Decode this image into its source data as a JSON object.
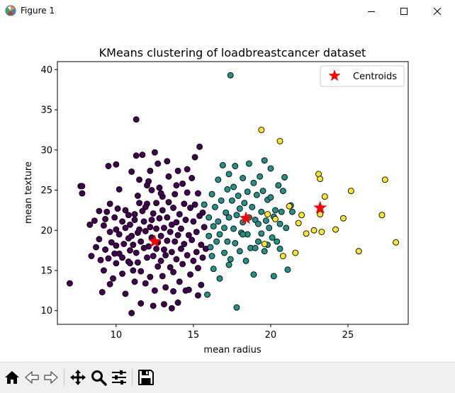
{
  "window": {
    "title": "Figure 1",
    "controls": [
      "minimize",
      "maximize",
      "close"
    ]
  },
  "toolbar": {
    "buttons": [
      "home-icon",
      "back-icon",
      "forward-icon",
      "pan-icon",
      "zoom-icon",
      "configure-subplots-icon",
      "save-icon"
    ]
  },
  "colors": {
    "cluster0": "#440154",
    "cluster1": "#21918c",
    "cluster2": "#fde725",
    "centroid": "#ff0000"
  },
  "chart_data": {
    "type": "scatter",
    "title": "KMeans clustering of loadbreastcancer dataset",
    "xlabel": "mean radius",
    "ylabel": "mean texture",
    "xlim": [
      6.2,
      28.9
    ],
    "ylim": [
      8.3,
      41.0
    ],
    "xticks": [
      10,
      15,
      20,
      25
    ],
    "yticks": [
      10,
      15,
      20,
      25,
      30,
      35,
      40
    ],
    "grid": false,
    "legend": {
      "position": "top-right",
      "entries": [
        "Centroids"
      ]
    },
    "centroids": [
      [
        12.5,
        18.6
      ],
      [
        18.4,
        21.5
      ],
      [
        23.2,
        22.8
      ]
    ],
    "clusters": [
      {
        "color": "#440154",
        "points": [
          [
            7.0,
            13.4
          ],
          [
            7.7,
            25.5
          ],
          [
            7.8,
            24.6
          ],
          [
            7.8,
            25.5
          ],
          [
            8.3,
            20.7
          ],
          [
            8.4,
            16.8
          ],
          [
            8.6,
            21.2
          ],
          [
            8.7,
            17.9
          ],
          [
            8.9,
            22.4
          ],
          [
            8.9,
            18.9
          ],
          [
            9.0,
            16.3
          ],
          [
            9.1,
            12.3
          ],
          [
            9.2,
            15.0
          ],
          [
            9.2,
            20.6
          ],
          [
            9.3,
            21.4
          ],
          [
            9.3,
            17.6
          ],
          [
            9.4,
            22.3
          ],
          [
            9.5,
            28.0
          ],
          [
            9.5,
            16.5
          ],
          [
            9.6,
            13.3
          ],
          [
            9.6,
            19.8
          ],
          [
            9.7,
            18.5
          ],
          [
            9.8,
            14.0
          ],
          [
            9.9,
            17.1
          ],
          [
            9.9,
            21.6
          ],
          [
            10.0,
            20.1
          ],
          [
            10.0,
            28.2
          ],
          [
            10.0,
            18.1
          ],
          [
            10.0,
            15.9
          ],
          [
            10.1,
            22.7
          ],
          [
            10.2,
            19.5
          ],
          [
            10.2,
            17.1
          ],
          [
            10.4,
            16.6
          ],
          [
            10.4,
            21.1
          ],
          [
            10.5,
            18.3
          ],
          [
            10.6,
            20.3
          ],
          [
            10.6,
            22.5
          ],
          [
            10.8,
            19.0
          ],
          [
            10.8,
            16.1
          ],
          [
            10.9,
            17.5
          ],
          [
            10.9,
            20.7
          ],
          [
            11.0,
            27.3
          ],
          [
            11.0,
            19.3
          ],
          [
            11.1,
            15.0
          ],
          [
            11.1,
            18.2
          ],
          [
            11.2,
            21.3
          ],
          [
            11.2,
            22.0
          ],
          [
            11.3,
            29.3
          ],
          [
            11.3,
            33.8
          ],
          [
            11.3,
            17.2
          ],
          [
            11.4,
            19.7
          ],
          [
            11.4,
            16.0
          ],
          [
            11.5,
            23.4
          ],
          [
            11.5,
            20.1
          ],
          [
            11.6,
            18.6
          ],
          [
            11.6,
            14.9
          ],
          [
            11.6,
            10.9
          ],
          [
            11.7,
            29.4
          ],
          [
            11.7,
            22.4
          ],
          [
            11.8,
            21.1
          ],
          [
            11.8,
            17.8
          ],
          [
            11.9,
            13.4
          ],
          [
            11.9,
            19.9
          ],
          [
            12.0,
            25.6
          ],
          [
            12.0,
            16.6
          ],
          [
            12.0,
            23.3
          ],
          [
            12.1,
            18.0
          ],
          [
            12.1,
            26.1
          ],
          [
            12.2,
            20.4
          ],
          [
            12.2,
            14.2
          ],
          [
            12.2,
            27.4
          ],
          [
            12.3,
            19.1
          ],
          [
            12.3,
            21.3
          ],
          [
            12.4,
            22.1
          ],
          [
            12.4,
            16.8
          ],
          [
            12.5,
            12.5
          ],
          [
            12.5,
            29.7
          ],
          [
            12.6,
            17.7
          ],
          [
            12.6,
            20.2
          ],
          [
            12.6,
            23.4
          ],
          [
            12.7,
            15.5
          ],
          [
            12.7,
            18.5
          ],
          [
            12.8,
            21.5
          ],
          [
            12.8,
            25.3
          ],
          [
            12.9,
            16.2
          ],
          [
            12.9,
            19.3
          ],
          [
            13.0,
            22.5
          ],
          [
            13.0,
            14.3
          ],
          [
            13.0,
            24.2
          ],
          [
            13.1,
            17.6
          ],
          [
            13.1,
            20.3
          ],
          [
            13.2,
            12.9
          ],
          [
            13.2,
            16.9
          ],
          [
            13.3,
            21.6
          ],
          [
            13.3,
            18.7
          ],
          [
            13.4,
            26.7
          ],
          [
            13.4,
            23.5
          ],
          [
            13.5,
            15.4
          ],
          [
            13.5,
            19.8
          ],
          [
            13.6,
            20.7
          ],
          [
            13.6,
            17.3
          ],
          [
            13.6,
            10.3
          ],
          [
            13.7,
            22.8
          ],
          [
            13.7,
            14.8
          ],
          [
            13.8,
            18.6
          ],
          [
            13.8,
            24.5
          ],
          [
            13.9,
            21.0
          ],
          [
            13.9,
            16.4
          ],
          [
            14.0,
            27.4
          ],
          [
            14.0,
            19.4
          ],
          [
            14.1,
            13.6
          ],
          [
            14.1,
            22.0
          ],
          [
            14.2,
            17.7
          ],
          [
            14.2,
            20.2
          ],
          [
            14.3,
            25.8
          ],
          [
            14.3,
            15.8
          ],
          [
            14.4,
            23.3
          ],
          [
            14.4,
            18.3
          ],
          [
            14.5,
            21.3
          ],
          [
            14.5,
            12.5
          ],
          [
            14.6,
            24.7
          ],
          [
            14.6,
            16.9
          ],
          [
            14.7,
            19.4
          ],
          [
            14.8,
            22.8
          ],
          [
            14.8,
            14.5
          ],
          [
            14.9,
            26.5
          ],
          [
            14.9,
            18.8
          ],
          [
            15.0,
            21.1
          ],
          [
            15.0,
            16.2
          ],
          [
            15.1,
            23.2
          ],
          [
            15.1,
            29.1
          ],
          [
            15.2,
            17.3
          ],
          [
            15.2,
            19.8
          ],
          [
            15.3,
            24.6
          ],
          [
            15.3,
            15.3
          ],
          [
            15.4,
            21.8
          ],
          [
            15.4,
            30.4
          ],
          [
            15.5,
            18.2
          ],
          [
            15.5,
            13.2
          ],
          [
            15.6,
            22.2
          ],
          [
            15.6,
            16.6
          ],
          [
            15.7,
            20.4
          ],
          [
            15.8,
            17.7
          ],
          [
            10.2,
            25.1
          ],
          [
            10.8,
            21.9
          ],
          [
            11.2,
            13.6
          ],
          [
            11.5,
            26.3
          ],
          [
            12.7,
            28.3
          ],
          [
            13.3,
            28.6
          ],
          [
            13.7,
            12.4
          ],
          [
            14.6,
            27.6
          ],
          [
            10.4,
            14.6
          ],
          [
            10.9,
            15.9
          ],
          [
            11.4,
            24.3
          ],
          [
            12.4,
            10.6
          ],
          [
            13.1,
            10.8
          ],
          [
            11.9,
            22.9
          ],
          [
            12.3,
            25.0
          ],
          [
            13.9,
            25.6
          ],
          [
            14.7,
            12.6
          ],
          [
            15.3,
            11.9
          ],
          [
            9.6,
            23.3
          ],
          [
            10.6,
            12.1
          ],
          [
            11.0,
            9.7
          ],
          [
            12.9,
            24.6
          ],
          [
            14.0,
            11.0
          ]
        ]
      },
      {
        "color": "#21918c",
        "points": [
          [
            15.7,
            23.2
          ],
          [
            15.9,
            12.0
          ],
          [
            16.0,
            19.3
          ],
          [
            16.0,
            21.6
          ],
          [
            16.1,
            17.9
          ],
          [
            16.2,
            24.5
          ],
          [
            16.3,
            20.5
          ],
          [
            16.3,
            15.2
          ],
          [
            16.4,
            22.9
          ],
          [
            16.5,
            18.6
          ],
          [
            16.6,
            26.3
          ],
          [
            16.6,
            21.1
          ],
          [
            16.7,
            19.5
          ],
          [
            16.7,
            14.0
          ],
          [
            16.8,
            23.7
          ],
          [
            16.9,
            28.1
          ],
          [
            17.0,
            20.3
          ],
          [
            17.0,
            17.2
          ],
          [
            17.1,
            22.2
          ],
          [
            17.2,
            25.1
          ],
          [
            17.2,
            18.6
          ],
          [
            17.3,
            21.6
          ],
          [
            17.3,
            27.0
          ],
          [
            17.4,
            39.3
          ],
          [
            17.4,
            16.4
          ],
          [
            17.5,
            23.7
          ],
          [
            17.6,
            20.2
          ],
          [
            17.6,
            25.4
          ],
          [
            17.7,
            28.0
          ],
          [
            17.7,
            18.4
          ],
          [
            17.8,
            21.9
          ],
          [
            17.8,
            10.4
          ],
          [
            17.9,
            24.3
          ],
          [
            18.0,
            17.4
          ],
          [
            18.0,
            22.7
          ],
          [
            18.1,
            19.7
          ],
          [
            18.2,
            26.5
          ],
          [
            18.2,
            21.0
          ],
          [
            18.3,
            23.4
          ],
          [
            18.4,
            16.2
          ],
          [
            18.5,
            24.8
          ],
          [
            18.5,
            19.5
          ],
          [
            18.6,
            28.3
          ],
          [
            18.6,
            21.6
          ],
          [
            18.7,
            17.8
          ],
          [
            18.8,
            22.9
          ],
          [
            18.9,
            25.9
          ],
          [
            18.9,
            14.5
          ],
          [
            19.0,
            21.3
          ],
          [
            19.1,
            24.4
          ],
          [
            19.2,
            18.6
          ],
          [
            19.2,
            20.8
          ],
          [
            19.3,
            26.7
          ],
          [
            19.4,
            22.3
          ],
          [
            19.4,
            19.6
          ],
          [
            19.5,
            24.9
          ],
          [
            19.6,
            17.4
          ],
          [
            19.6,
            28.7
          ],
          [
            19.7,
            21.2
          ],
          [
            19.8,
            23.8
          ],
          [
            19.8,
            18.2
          ],
          [
            19.9,
            20.3
          ],
          [
            20.0,
            24.1
          ],
          [
            20.0,
            27.7
          ],
          [
            20.1,
            19.1
          ],
          [
            20.2,
            21.7
          ],
          [
            20.2,
            14.3
          ],
          [
            20.3,
            22.5
          ],
          [
            20.4,
            18.6
          ],
          [
            20.5,
            25.6
          ],
          [
            20.6,
            20.8
          ],
          [
            20.7,
            22.3
          ],
          [
            20.8,
            24.9
          ],
          [
            20.9,
            26.6
          ],
          [
            21.0,
            20.3
          ],
          [
            21.1,
            15.1
          ],
          [
            21.3,
            23.1
          ],
          [
            21.4,
            22.3
          ],
          [
            16.2,
            16.8
          ],
          [
            17.3,
            15.7
          ],
          [
            18.2,
            19.5
          ],
          [
            19.0,
            17.8
          ],
          [
            20.6,
            17.7
          ]
        ]
      },
      {
        "color": "#fde725",
        "points": [
          [
            19.4,
            32.5
          ],
          [
            19.6,
            18.3
          ],
          [
            19.8,
            22.0
          ],
          [
            20.3,
            21.4
          ],
          [
            20.6,
            31.1
          ],
          [
            20.8,
            16.8
          ],
          [
            21.2,
            23.0
          ],
          [
            21.6,
            17.2
          ],
          [
            21.8,
            20.9
          ],
          [
            22.0,
            21.9
          ],
          [
            22.3,
            19.6
          ],
          [
            22.8,
            20.0
          ],
          [
            23.1,
            27.0
          ],
          [
            23.2,
            22.0
          ],
          [
            23.2,
            26.4
          ],
          [
            23.3,
            19.8
          ],
          [
            23.5,
            24.2
          ],
          [
            24.2,
            20.1
          ],
          [
            24.7,
            21.5
          ],
          [
            25.2,
            24.9
          ],
          [
            25.7,
            17.4
          ],
          [
            27.2,
            21.9
          ],
          [
            27.4,
            26.3
          ],
          [
            28.1,
            18.5
          ]
        ]
      }
    ]
  }
}
